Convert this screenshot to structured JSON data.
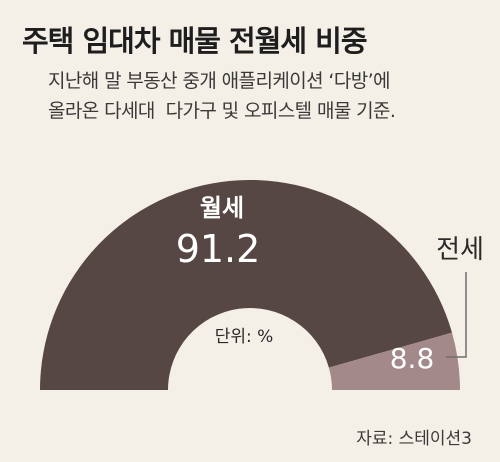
{
  "title": "주택 임대차 매물 전월세 비중",
  "subtitle_lines": [
    "지난해 말 부동산 중개 애플리케이션 ‘다방’에",
    "올라온 다세대  다가구 및 오피스텔 매물 기준."
  ],
  "source": "자료: 스테이션3",
  "colors": {
    "background": "#f5f0e7",
    "monthly_rent": "#574744",
    "jeonse": "#a4898b"
  },
  "chart_data": {
    "type": "pie",
    "style": "semicircle-donut",
    "unit_label": "단위: %",
    "slices": [
      {
        "label": "월세",
        "value": 91.2,
        "value_label": "91.2"
      },
      {
        "label": "전세",
        "value": 8.8,
        "value_label": "8.8"
      }
    ]
  }
}
